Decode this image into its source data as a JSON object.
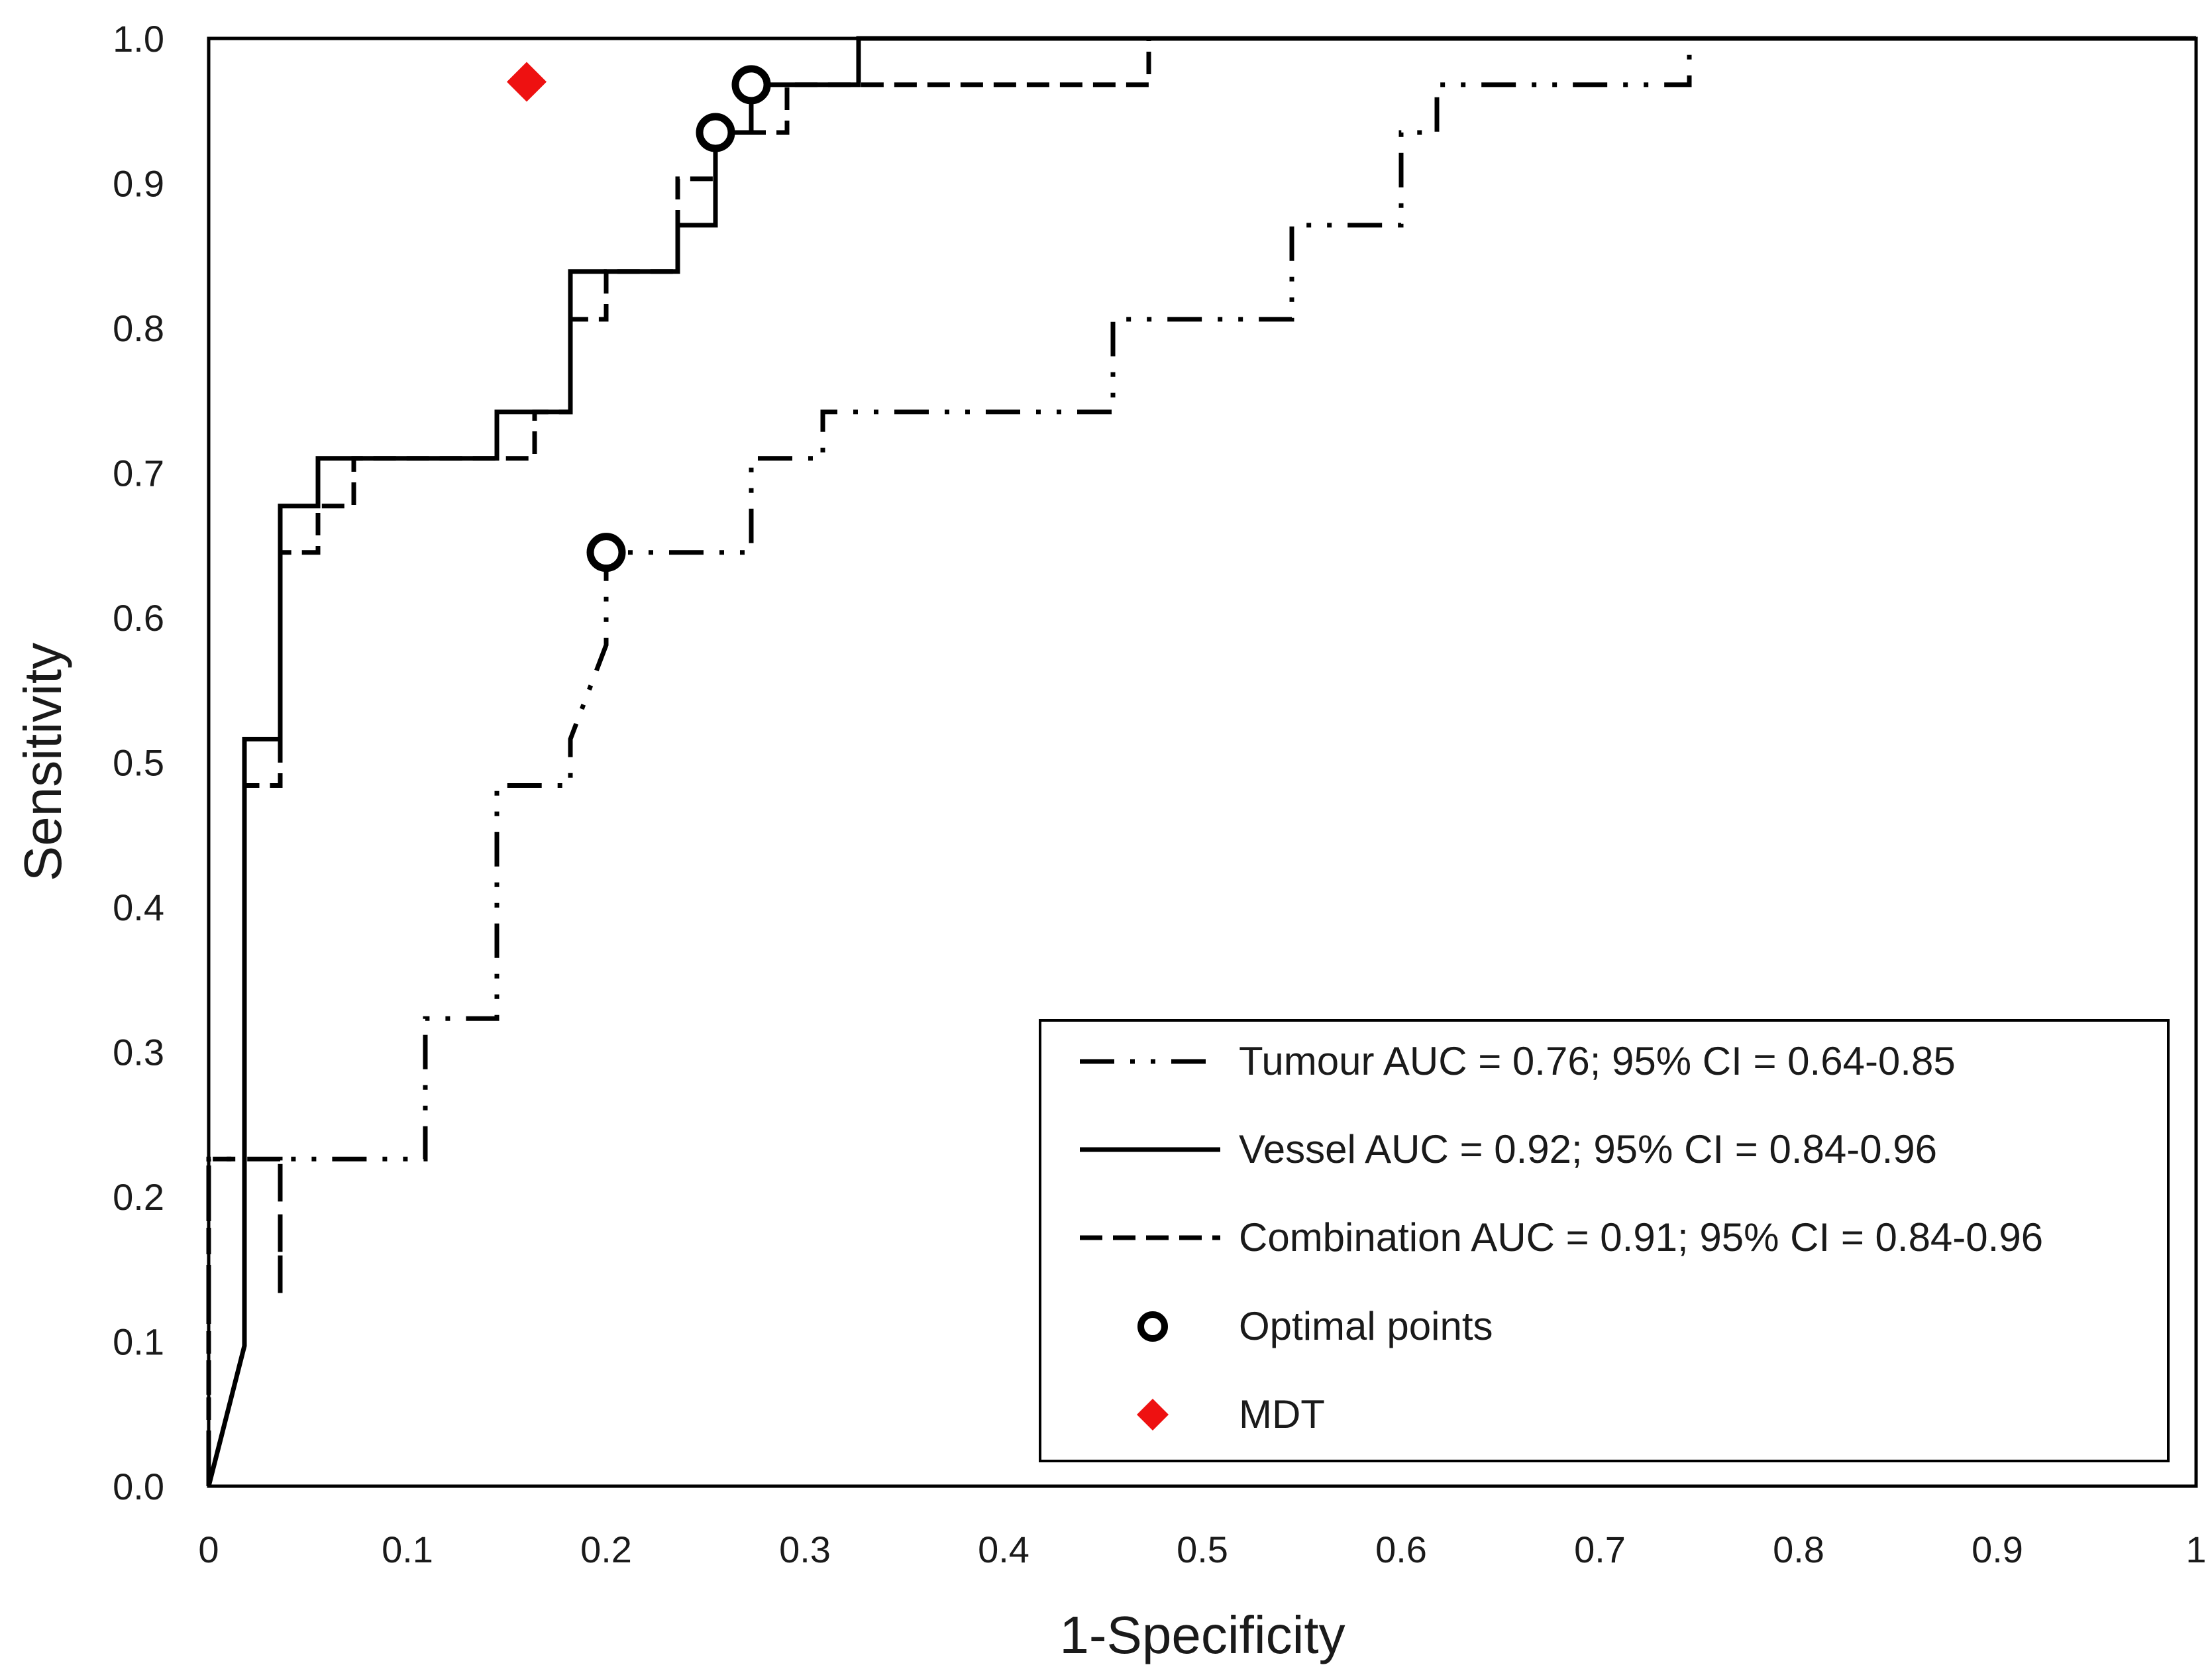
{
  "chart_data": {
    "type": "line",
    "title": "",
    "xlabel": "1-Specificity",
    "ylabel": "Sensitivity",
    "xlim": [
      0,
      1
    ],
    "ylim": [
      0,
      1
    ],
    "grid": false,
    "legend_position": "bottom-right",
    "x_ticks": [
      "0",
      "0.1",
      "0.2",
      "0.3",
      "0.4",
      "0.5",
      "0.6",
      "0.7",
      "0.8",
      "0.9",
      "1"
    ],
    "y_ticks": [
      "0.0",
      "0.1",
      "0.2",
      "0.3",
      "0.4",
      "0.5",
      "0.6",
      "0.7",
      "0.8",
      "0.9",
      "1.0"
    ],
    "series": [
      {
        "name": "Tumour",
        "legend_label": "Tumour AUC = 0.76; 95% CI = 0.64-0.85",
        "style": "dash-dot-dot",
        "color": "#000000",
        "points": [
          [
            0,
            0
          ],
          [
            0,
            0.226
          ],
          [
            0.036,
            0.226
          ],
          [
            0.036,
            0.129
          ],
          [
            0.036,
            0.226
          ],
          [
            0.109,
            0.226
          ],
          [
            0.109,
            0.323
          ],
          [
            0.145,
            0.323
          ],
          [
            0.145,
            0.355
          ],
          [
            0.145,
            0.484
          ],
          [
            0.182,
            0.484
          ],
          [
            0.182,
            0.516
          ],
          [
            0.2,
            0.581
          ],
          [
            0.2,
            0.645
          ],
          [
            0.273,
            0.645
          ],
          [
            0.273,
            0.71
          ],
          [
            0.309,
            0.71
          ],
          [
            0.309,
            0.742
          ],
          [
            0.455,
            0.742
          ],
          [
            0.455,
            0.806
          ],
          [
            0.545,
            0.806
          ],
          [
            0.545,
            0.871
          ],
          [
            0.6,
            0.871
          ],
          [
            0.6,
            0.935
          ],
          [
            0.618,
            0.935
          ],
          [
            0.618,
            0.968
          ],
          [
            0.745,
            0.968
          ],
          [
            0.745,
            1.0
          ],
          [
            1,
            1
          ]
        ]
      },
      {
        "name": "Vessel",
        "legend_label": "Vessel AUC = 0.92; 95% CI = 0.84-0.96",
        "style": "solid",
        "color": "#000000",
        "points": [
          [
            0,
            0
          ],
          [
            0.018,
            0.097
          ],
          [
            0.018,
            0.516
          ],
          [
            0.036,
            0.516
          ],
          [
            0.036,
            0.677
          ],
          [
            0.055,
            0.677
          ],
          [
            0.055,
            0.71
          ],
          [
            0.145,
            0.71
          ],
          [
            0.145,
            0.742
          ],
          [
            0.182,
            0.742
          ],
          [
            0.182,
            0.839
          ],
          [
            0.236,
            0.839
          ],
          [
            0.236,
            0.871
          ],
          [
            0.255,
            0.871
          ],
          [
            0.255,
            0.935
          ],
          [
            0.273,
            0.935
          ],
          [
            0.273,
            0.968
          ],
          [
            0.327,
            0.968
          ],
          [
            0.327,
            1.0
          ],
          [
            1,
            1
          ]
        ]
      },
      {
        "name": "Combination",
        "legend_label": "Combination AUC = 0.91; 95% CI = 0.84-0.96",
        "style": "dashed",
        "color": "#000000",
        "points": [
          [
            0,
            0
          ],
          [
            0,
            0.226
          ],
          [
            0.018,
            0.226
          ],
          [
            0.018,
            0.484
          ],
          [
            0.036,
            0.484
          ],
          [
            0.036,
            0.645
          ],
          [
            0.055,
            0.645
          ],
          [
            0.055,
            0.677
          ],
          [
            0.073,
            0.677
          ],
          [
            0.073,
            0.71
          ],
          [
            0.164,
            0.71
          ],
          [
            0.164,
            0.742
          ],
          [
            0.182,
            0.742
          ],
          [
            0.182,
            0.806
          ],
          [
            0.2,
            0.806
          ],
          [
            0.2,
            0.839
          ],
          [
            0.236,
            0.839
          ],
          [
            0.236,
            0.903
          ],
          [
            0.255,
            0.903
          ],
          [
            0.255,
            0.935
          ],
          [
            0.291,
            0.935
          ],
          [
            0.291,
            0.968
          ],
          [
            0.473,
            0.968
          ],
          [
            0.473,
            1.0
          ],
          [
            1,
            1
          ]
        ]
      }
    ],
    "optimal_points": {
      "legend_label": "Optimal points",
      "points": [
        [
          0.2,
          0.645
        ],
        [
          0.255,
          0.935
        ],
        [
          0.273,
          0.968
        ]
      ]
    },
    "mdt": {
      "legend_label": "MDT",
      "color": "#ee1111",
      "point": [
        0.16,
        0.97
      ]
    }
  }
}
